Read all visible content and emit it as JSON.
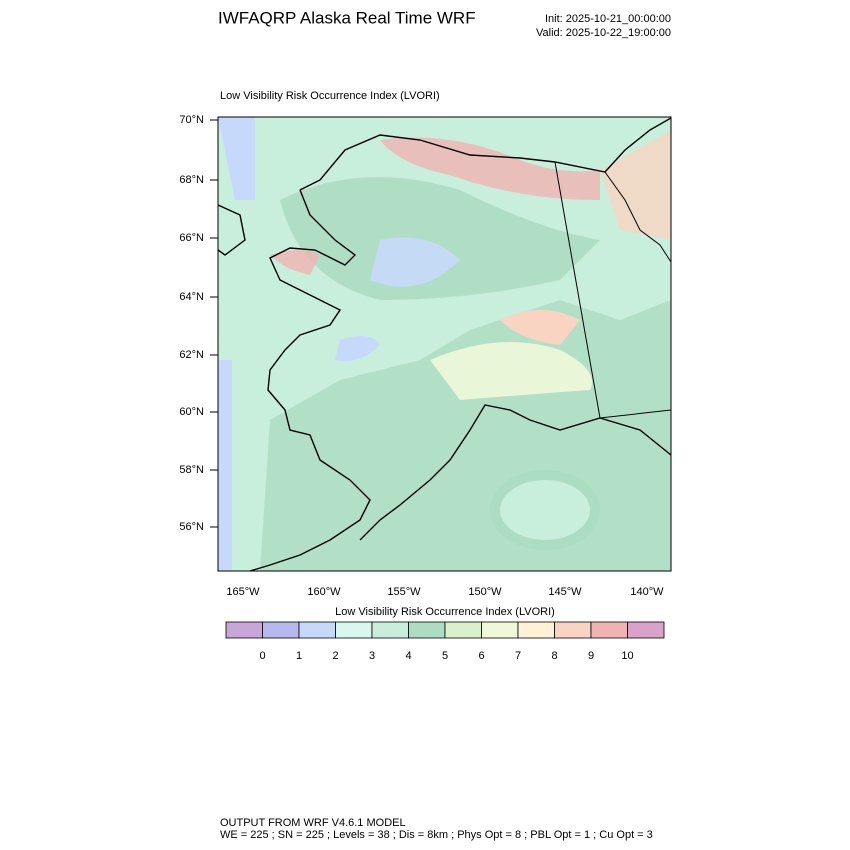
{
  "header": {
    "title": "IWFAQRP Alaska Real Time WRF",
    "init": "Init: 2025-10-21_00:00:00",
    "valid": "Valid: 2025-10-22_19:00:00"
  },
  "map": {
    "subtitle": "Low Visibility Risk Occurrence Index   (LVORI)",
    "lat_labels": [
      "70°N",
      "68°N",
      "66°N",
      "64°N",
      "62°N",
      "60°N",
      "58°N",
      "56°N"
    ],
    "lon_labels": [
      "165°W",
      "160°W",
      "155°W",
      "150°W",
      "145°W",
      "140°W"
    ]
  },
  "colorbar": {
    "title": "Low Visibility Risk Occurrence Index  (LVORI)",
    "colors": [
      "#c9a6d9",
      "#b6b8ee",
      "#c6d9fa",
      "#d6f8ef",
      "#c8eedc",
      "#acdcc2",
      "#d9f1cb",
      "#eff8d9",
      "#fff2d4",
      "#f9d4c3",
      "#f0b3b3",
      "#d9a3c9"
    ],
    "labels": [
      "0",
      "1",
      "2",
      "3",
      "4",
      "5",
      "6",
      "7",
      "8",
      "9",
      "10"
    ]
  },
  "footer": {
    "line1": "OUTPUT FROM WRF V4.6.1 MODEL",
    "line2": "WE = 225 ; SN = 225 ; Levels = 38 ; Dis = 8km ; Phys Opt = 8 ; PBL Opt = 1 ; Cu Opt = 3"
  }
}
